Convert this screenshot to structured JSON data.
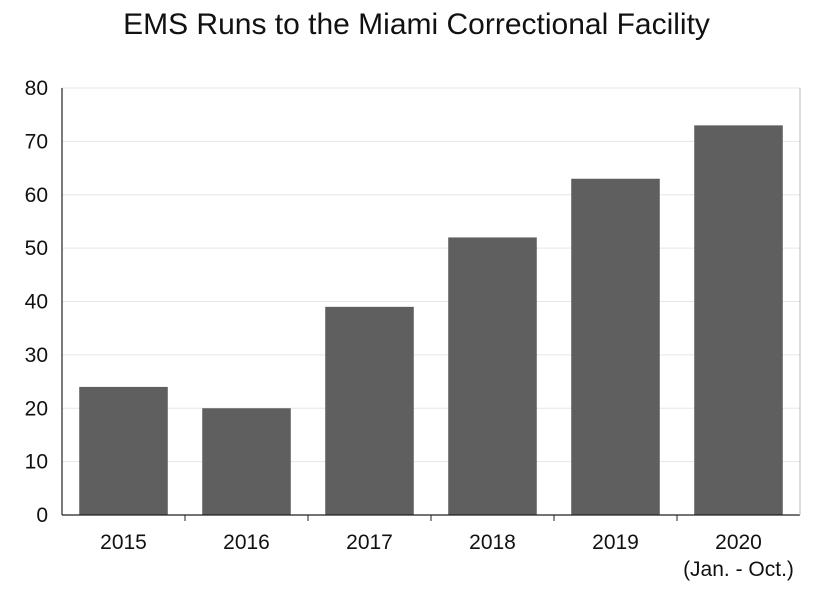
{
  "chart_data": {
    "type": "bar",
    "title": "EMS Runs to the Miami Correctional Facility",
    "categories": [
      "2015",
      "2016",
      "2017",
      "2018",
      "2019",
      "2020"
    ],
    "category_sublabels": [
      "",
      "",
      "",
      "",
      "",
      "(Jan. - Oct.)"
    ],
    "values": [
      24,
      20,
      39,
      52,
      63,
      73
    ],
    "xlabel": "",
    "ylabel": "",
    "ylim": [
      0,
      80
    ],
    "yticks": [
      0,
      10,
      20,
      30,
      40,
      50,
      60,
      70,
      80
    ],
    "grid": true,
    "bar_color": "#5f5f5f",
    "grid_color": "#e6e6e6"
  }
}
